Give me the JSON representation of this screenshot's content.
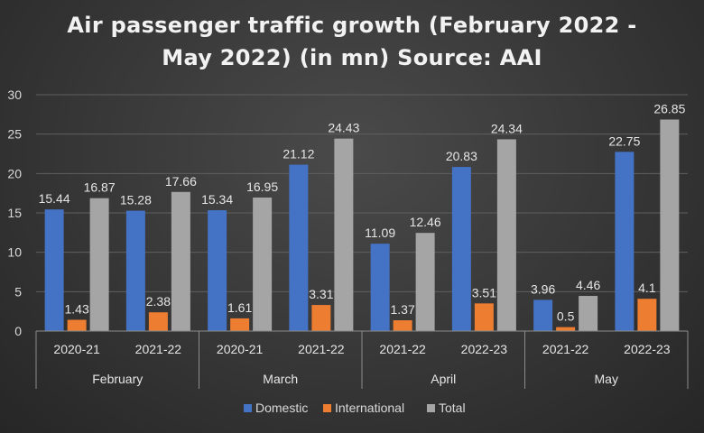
{
  "chart_data": {
    "type": "bar",
    "title_lines": [
      "Air passenger traffic growth (February 2022 -",
      "May 2022) (in mn) Source: AAI"
    ],
    "xlabel": "",
    "ylabel": "",
    "ylim": [
      0,
      30
    ],
    "yticks": [
      "0",
      "5",
      "10",
      "15",
      "20",
      "25",
      "30"
    ],
    "grid": true,
    "legend_position": "bottom",
    "groups": [
      {
        "label": "February",
        "categories": [
          "2020-21",
          "2021-22"
        ]
      },
      {
        "label": "March",
        "categories": [
          "2020-21",
          "2021-22"
        ]
      },
      {
        "label": "April",
        "categories": [
          "2021-22",
          "2022-23"
        ]
      },
      {
        "label": "May",
        "categories": [
          "2021-22",
          "2022-23"
        ]
      }
    ],
    "series": [
      {
        "name": "Domestic",
        "color": "#4472c4",
        "values": [
          15.44,
          15.28,
          15.34,
          21.12,
          11.09,
          20.83,
          3.96,
          22.75
        ],
        "labels": [
          "15.44",
          "15.28",
          "15.34",
          "21.12",
          "11.09",
          "20.83",
          "3.96",
          "22.75"
        ]
      },
      {
        "name": "International",
        "color": "#ed7d31",
        "values": [
          1.43,
          2.38,
          1.61,
          3.31,
          1.37,
          3.51,
          0.5,
          4.1
        ],
        "labels": [
          "1.43",
          "2.38",
          "1.61",
          "3.31",
          "1.37",
          "3.51",
          "0.5",
          "4.1"
        ]
      },
      {
        "name": "Total",
        "color": "#a5a5a5",
        "values": [
          16.87,
          17.66,
          16.95,
          24.43,
          12.46,
          24.34,
          4.46,
          26.85
        ],
        "labels": [
          "16.87",
          "17.66",
          "16.95",
          "24.43",
          "12.46",
          "24.34",
          "4.46",
          "26.85"
        ]
      }
    ]
  }
}
